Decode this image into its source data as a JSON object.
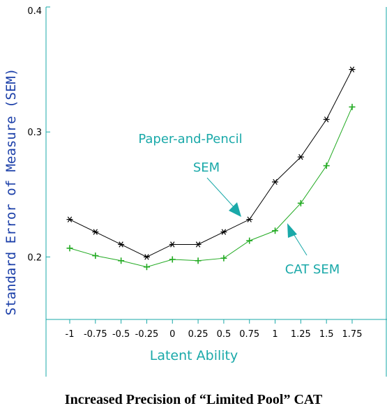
{
  "caption": "Increased Precision of “Limited Pool” CAT",
  "chart_data": {
    "type": "line",
    "title": "",
    "xlabel": "Latent Ability",
    "ylabel": "Standard Error of Measure (SEM)",
    "x": [
      -1,
      -0.75,
      -0.5,
      -0.25,
      0,
      0.25,
      0.5,
      0.75,
      1,
      1.25,
      1.5,
      1.75
    ],
    "x_tick_labels": [
      "-1",
      "-0.75",
      "-0.5",
      "-0.25",
      "0",
      "0.25",
      "0.5",
      "0.75",
      "1",
      "1.25",
      "1.5",
      "1.75"
    ],
    "y_ticks": [
      0.2,
      0.3,
      0.4
    ],
    "y_tick_labels": [
      "0.2",
      "0.3",
      "0.4"
    ],
    "ylim": [
      0.15,
      0.4
    ],
    "grid": false,
    "series": [
      {
        "name": "Paper-and-Pencil SEM",
        "label_lines": [
          "Paper-and-Pencil",
          "SEM"
        ],
        "color": "#000000",
        "marker": "asterisk",
        "values": [
          0.23,
          0.22,
          0.21,
          0.2,
          0.21,
          0.21,
          0.22,
          0.23,
          0.26,
          0.28,
          0.31,
          0.35
        ]
      },
      {
        "name": "CAT SEM",
        "label_lines": [
          "CAT SEM"
        ],
        "color": "#22aa22",
        "marker": "plus",
        "values": [
          0.207,
          0.201,
          0.197,
          0.192,
          0.198,
          0.197,
          0.199,
          0.213,
          0.221,
          0.243,
          0.273,
          0.32
        ]
      }
    ],
    "axis_color": "#1aa9a9",
    "annotation_color": "#1aa9a9"
  }
}
